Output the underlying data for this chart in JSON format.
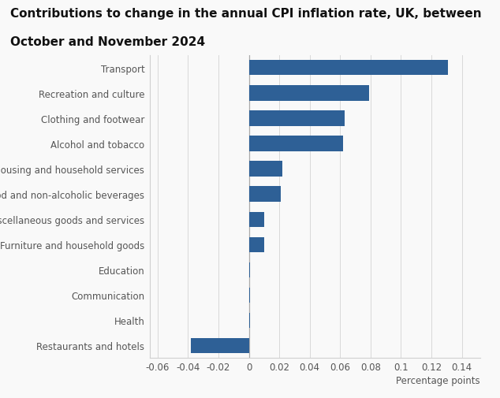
{
  "title_line1": "Contributions to change in the annual CPI inflation rate, UK, between",
  "title_line2": "October and November 2024",
  "categories": [
    "Transport",
    "Recreation and culture",
    "Clothing and footwear",
    "Alcohol and tobacco",
    "Housing and household services",
    "Food and non-alcoholic beverages",
    "Miscellaneous goods and services",
    "Furniture and household goods",
    "Education",
    "Communication",
    "Health",
    "Restaurants and hotels"
  ],
  "values": [
    0.131,
    0.079,
    0.063,
    0.062,
    0.022,
    0.021,
    0.01,
    0.01,
    0.001,
    0.001,
    0.001,
    -0.038
  ],
  "bar_color": "#2e6096",
  "xlabel": "Percentage points",
  "xlim": [
    -0.065,
    0.152
  ],
  "xticks": [
    -0.06,
    -0.04,
    -0.02,
    0.0,
    0.02,
    0.04,
    0.06,
    0.08,
    0.1,
    0.12,
    0.14
  ],
  "background_color": "#f9f9f9",
  "title_fontsize": 11,
  "label_fontsize": 8.5,
  "tick_fontsize": 8.5
}
